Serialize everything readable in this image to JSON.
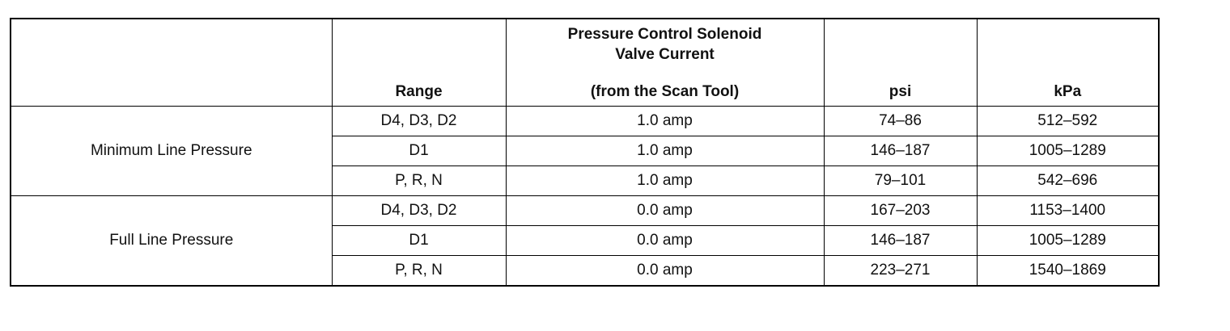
{
  "table": {
    "header": {
      "range": "Range",
      "current": {
        "title": "Pressure Control Solenoid Valve Current",
        "note": "(from the Scan Tool)"
      },
      "psi": "psi",
      "kpa": "kPa"
    },
    "groups": [
      {
        "label": "Minimum Line Pressure",
        "rows": [
          [
            "D4, D3, D2",
            "1.0 amp",
            "74–86",
            "512–592"
          ],
          [
            "D1",
            "1.0 amp",
            "146–187",
            "1005–1289"
          ],
          [
            "P, R, N",
            "1.0 amp",
            "79–101",
            "542–696"
          ]
        ]
      },
      {
        "label": "Full Line Pressure",
        "rows": [
          [
            "D4, D3, D2",
            "0.0 amp",
            "167–203",
            "1153–1400"
          ],
          [
            "D1",
            "0.0 amp",
            "146–187",
            "1005–1289"
          ],
          [
            "P, R, N",
            "0.0 amp",
            "223–271",
            "1540–1869"
          ]
        ]
      }
    ]
  }
}
